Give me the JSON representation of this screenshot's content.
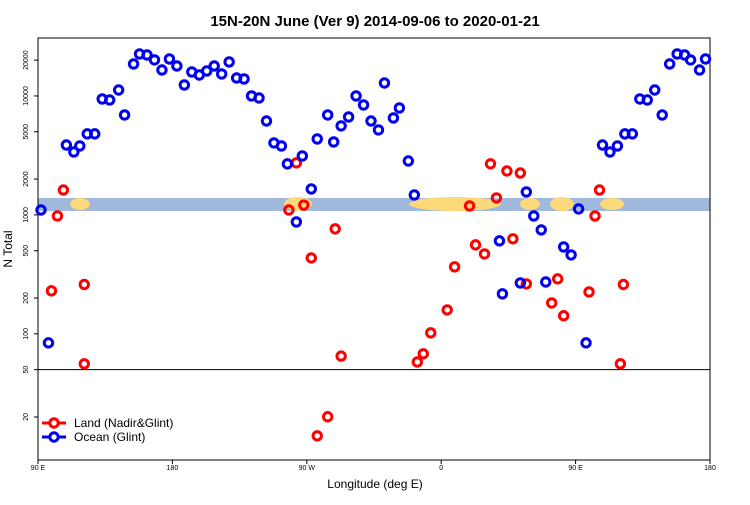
{
  "chart_data": {
    "type": "scatter",
    "title": "15N-20N June (Ver 9)   2014-09-06 to 2020-01-21",
    "x_label": "Longitude (deg E)",
    "y_label": "N Total",
    "xlim": [
      90,
      540
    ],
    "xticks": [
      {
        "value": 90,
        "label": "90 E"
      },
      180,
      {
        "value": 270,
        "label": "90 W"
      },
      {
        "value": 360,
        "label": "0"
      },
      {
        "value": 450,
        "label": "90 E"
      },
      {
        "value": 540,
        "label": "180"
      }
    ],
    "ylim": [
      8.7,
      30700
    ],
    "yticks": [
      20,
      50,
      100,
      200,
      500,
      1000,
      2000,
      5000,
      10000,
      20000
    ],
    "log_y": true,
    "hline": 50,
    "legend": "lower left",
    "series": [
      {
        "name": "Land (Nadir&Glint)",
        "color": "#ff0000",
        "x": [
          103,
          99,
          107,
          121,
          121,
          263,
          258,
          268,
          273,
          289,
          293,
          277,
          284,
          344,
          348,
          353,
          364,
          369,
          379,
          383,
          389,
          393,
          397,
          404,
          408,
          413,
          417,
          434,
          438,
          442,
          459,
          463,
          466,
          480,
          482
        ],
        "values": [
          980,
          230,
          1620,
          260,
          56,
          2740,
          1100,
          1210,
          435,
          763,
          65,
          13.9,
          20.1,
          58,
          68,
          102,
          159,
          366,
          1190,
          560,
          470,
          2690,
          1390,
          2340,
          630,
          2250,
          263,
          182,
          290,
          142,
          225,
          980,
          1620,
          56,
          260
        ]
      },
      {
        "name": "Ocean (Glint)",
        "color": "#0000ee",
        "x": [
          92,
          97,
          109,
          114,
          118,
          123,
          128,
          133,
          138,
          144,
          148,
          154,
          158,
          163,
          168,
          173,
          178,
          183,
          188,
          193,
          198,
          203,
          208,
          213,
          218,
          223,
          228,
          233,
          238,
          243,
          248,
          253,
          257,
          263,
          267,
          273,
          277,
          284,
          288,
          293,
          298,
          303,
          308,
          313,
          318,
          322,
          328,
          332,
          338,
          342,
          399,
          401,
          413,
          417,
          422,
          427,
          430,
          442,
          447,
          452,
          457,
          468,
          473,
          478,
          483,
          488,
          493,
          498,
          503,
          508,
          513,
          518,
          523,
          527,
          533,
          537
        ],
        "values": [
          1100,
          84,
          3870,
          3380,
          3800,
          4800,
          4800,
          9440,
          9250,
          11220,
          6920,
          18580,
          22540,
          22130,
          20090,
          16530,
          20460,
          17860,
          12370,
          15920,
          15000,
          16220,
          17860,
          15310,
          19310,
          14160,
          13900,
          10000,
          9620,
          6160,
          4030,
          3800,
          2685,
          873,
          3130,
          1653,
          4350,
          6920,
          4105,
          5600,
          6660,
          10000,
          8400,
          6160,
          5180,
          12850,
          6530,
          7930,
          2840,
          1472,
          605,
          217,
          268,
          1560,
          980,
          748,
          273,
          538,
          461,
          1123,
          84,
          3870,
          3380,
          3800,
          4800,
          4800,
          9440,
          9250,
          11220,
          6920,
          18580,
          22540,
          22130,
          20090,
          16530,
          20460
        ]
      }
    ]
  }
}
